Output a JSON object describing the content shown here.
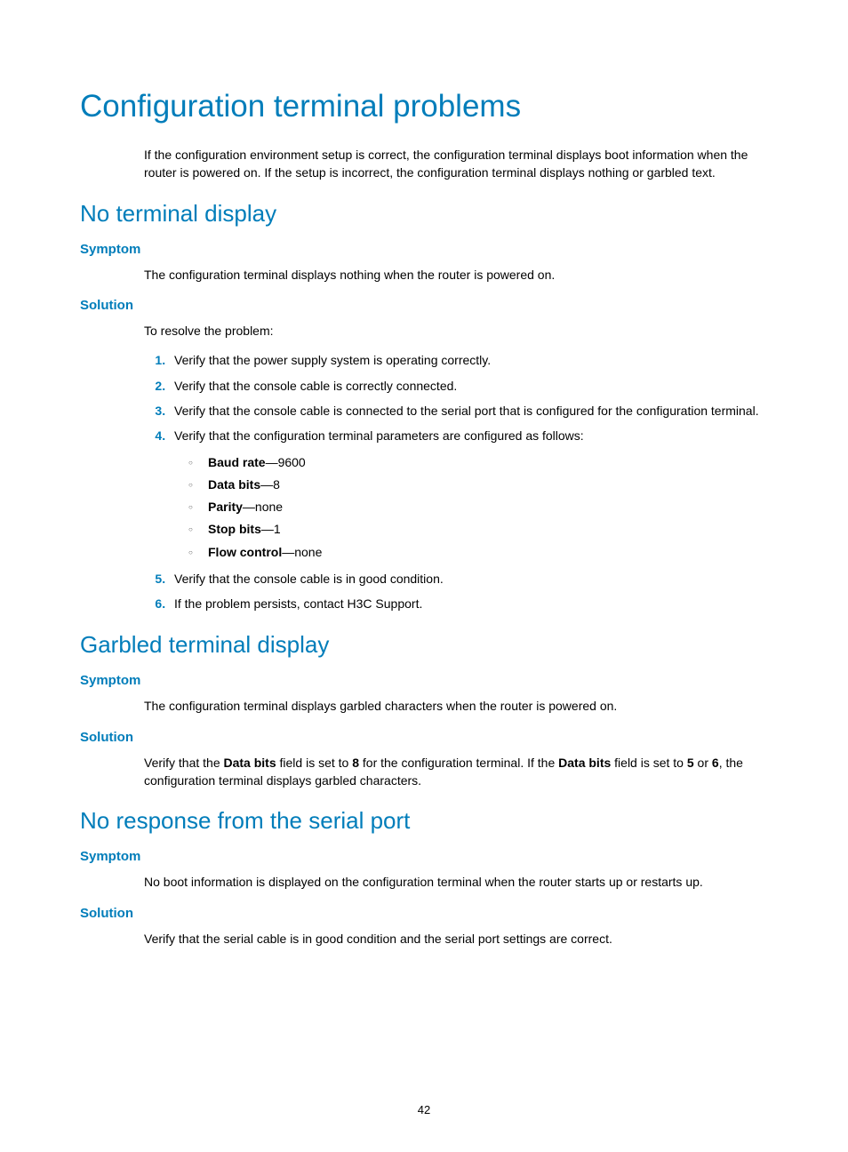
{
  "colors": {
    "accent": "#007dba",
    "text": "#000000",
    "bullet": "#555555",
    "background": "#ffffff"
  },
  "typography": {
    "h1_size_pt": 27,
    "h2_size_pt": 20,
    "h3_size_pt": 11,
    "body_size_pt": 10.5,
    "h1_weight": 300,
    "h3_weight": 700
  },
  "title": "Configuration terminal problems",
  "intro": "If the configuration environment setup is correct, the configuration terminal displays boot information when the router is powered on. If the setup is incorrect, the configuration terminal displays nothing or garbled text.",
  "labels": {
    "symptom": "Symptom",
    "solution": "Solution"
  },
  "sections": {
    "no_display": {
      "heading": "No terminal display",
      "symptom": "The configuration terminal displays nothing when the router is powered on.",
      "solution_intro": "To resolve the problem:",
      "steps": [
        "Verify that the power supply system is operating correctly.",
        "Verify that the console cable is correctly connected.",
        "Verify that the console cable is connected to the serial port that is configured for the configuration terminal.",
        "Verify that the configuration terminal parameters are configured as follows:",
        "Verify that the console cable is in good condition.",
        "If the problem persists, contact H3C Support."
      ],
      "params": [
        {
          "label": "Baud rate",
          "value": "9600"
        },
        {
          "label": "Data bits",
          "value": "8"
        },
        {
          "label": "Parity",
          "value": "none"
        },
        {
          "label": "Stop bits",
          "value": "1"
        },
        {
          "label": "Flow control",
          "value": "none"
        }
      ]
    },
    "garbled": {
      "heading": "Garbled terminal display",
      "symptom": "The configuration terminal displays garbled characters when the router is powered on.",
      "solution_parts": {
        "p1": "Verify that the ",
        "b1": "Data bits",
        "p2": " field is set to ",
        "b2": "8",
        "p3": " for the configuration terminal. If the ",
        "b3": "Data bits",
        "p4": " field is set to ",
        "b4": "5",
        "p5": " or ",
        "b5": "6",
        "p6": ", the configuration terminal displays garbled characters."
      }
    },
    "no_response": {
      "heading": "No response from the serial port",
      "symptom": "No boot information is displayed on the configuration terminal when the router starts up or restarts up.",
      "solution": "Verify that the serial cable is in good condition and the serial port settings are correct."
    }
  },
  "page_number": "42"
}
